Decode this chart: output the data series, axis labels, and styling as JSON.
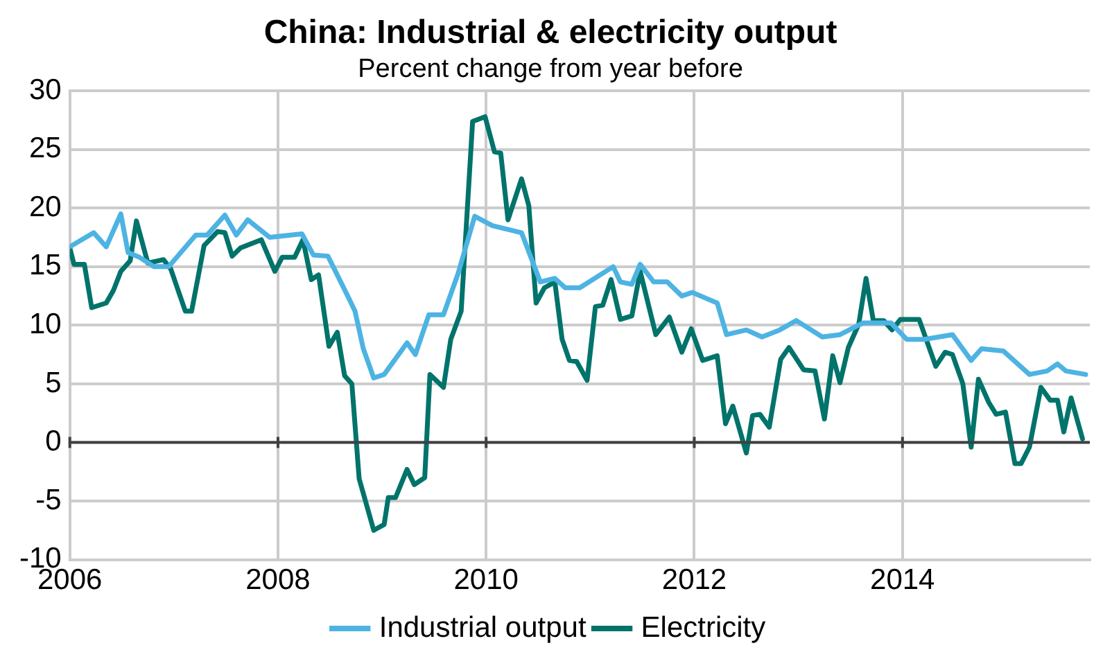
{
  "chart_data": {
    "type": "line",
    "title": "China: Industrial & electricity output",
    "subtitle": "Percent change from year before",
    "series": [
      {
        "name": "Industrial output",
        "color": "#4db3e3",
        "x": [
          2006.0,
          2006.23,
          2006.35,
          2006.49,
          2006.56,
          2006.67,
          2006.81,
          2006.95,
          2007.21,
          2007.32,
          2007.49,
          2007.6,
          2007.71,
          2007.92,
          2008.23,
          2008.34,
          2008.48,
          2008.67,
          2008.74,
          2008.82,
          2008.92,
          2009.02,
          2009.24,
          2009.32,
          2009.45,
          2009.59,
          2009.73,
          2009.89,
          2010.06,
          2010.34,
          2010.52,
          2010.66,
          2010.76,
          2010.9,
          2011.22,
          2011.29,
          2011.4,
          2011.48,
          2011.61,
          2011.74,
          2011.88,
          2011.98,
          2012.22,
          2012.31,
          2012.5,
          2012.65,
          2012.82,
          2012.98,
          2013.23,
          2013.4,
          2013.62,
          2013.89,
          2014.04,
          2014.21,
          2014.48,
          2014.66,
          2014.76,
          2014.97,
          2015.07,
          2015.22,
          2015.39,
          2015.49,
          2015.57,
          2015.76
        ],
        "values": [
          16.7,
          17.9,
          16.7,
          19.5,
          16.2,
          15.8,
          15,
          15,
          17.7,
          17.7,
          19.4,
          17.7,
          19,
          17.5,
          17.8,
          16,
          15.9,
          12.5,
          11.2,
          8,
          5.5,
          5.8,
          8.5,
          7.5,
          10.9,
          10.9,
          14.4,
          19.3,
          18.5,
          17.9,
          13.7,
          14,
          13.2,
          13.2,
          15,
          13.7,
          13.5,
          15.2,
          13.7,
          13.7,
          12.5,
          12.8,
          11.9,
          9.2,
          9.6,
          9,
          9.6,
          10.4,
          9,
          9.2,
          10.2,
          10.2,
          8.8,
          8.8,
          9.2,
          7,
          8,
          7.8,
          7,
          5.8,
          6.1,
          6.7,
          6.1,
          5.8
        ]
      },
      {
        "name": "Electricity",
        "color": "#00736b",
        "x": [
          2006.0,
          2006.04,
          2006.14,
          2006.21,
          2006.35,
          2006.42,
          2006.49,
          2006.58,
          2006.64,
          2006.75,
          2006.9,
          2006.97,
          2007.11,
          2007.17,
          2007.29,
          2007.42,
          2007.49,
          2007.56,
          2007.64,
          2007.84,
          2007.97,
          2008.04,
          2008.16,
          2008.24,
          2008.32,
          2008.39,
          2008.49,
          2008.57,
          2008.64,
          2008.71,
          2008.78,
          2008.92,
          2009.02,
          2009.06,
          2009.13,
          2009.24,
          2009.31,
          2009.41,
          2009.46,
          2009.59,
          2009.66,
          2009.76,
          2009.87,
          2009.99,
          2010.08,
          2010.14,
          2010.21,
          2010.34,
          2010.41,
          2010.48,
          2010.56,
          2010.66,
          2010.73,
          2010.8,
          2010.87,
          2010.97,
          2011.05,
          2011.12,
          2011.2,
          2011.29,
          2011.4,
          2011.48,
          2011.63,
          2011.76,
          2011.88,
          2011.97,
          2012.08,
          2012.22,
          2012.3,
          2012.37,
          2012.5,
          2012.56,
          2012.63,
          2012.72,
          2012.83,
          2012.91,
          2013.05,
          2013.16,
          2013.25,
          2013.33,
          2013.4,
          2013.48,
          2013.58,
          2013.65,
          2013.72,
          2013.82,
          2013.9,
          2013.98,
          2014.16,
          2014.32,
          2014.41,
          2014.48,
          2014.58,
          2014.66,
          2014.73,
          2014.83,
          2014.9,
          2014.99,
          2015.08,
          2015.14,
          2015.22,
          2015.33,
          2015.42,
          2015.49,
          2015.55,
          2015.62,
          2015.73
        ],
        "values": [
          16.6,
          15.2,
          15.2,
          11.5,
          11.9,
          13,
          14.6,
          15.5,
          18.9,
          15.3,
          15.6,
          14.8,
          11.2,
          11.2,
          16.8,
          18,
          17.9,
          15.9,
          16.6,
          17.3,
          14.6,
          15.8,
          15.8,
          17.3,
          13.9,
          14.3,
          8.2,
          9.4,
          5.7,
          5,
          -3.1,
          -7.5,
          -7,
          -4.7,
          -4.7,
          -2.3,
          -3.6,
          -3,
          5.8,
          4.7,
          8.8,
          11.2,
          27.4,
          27.8,
          24.8,
          24.7,
          19,
          22.5,
          20.2,
          11.9,
          13.2,
          13.7,
          8.8,
          7,
          6.9,
          5.3,
          11.6,
          11.7,
          13.9,
          10.5,
          10.8,
          14.6,
          9.2,
          10.7,
          7.7,
          9.7,
          7,
          7.4,
          1.6,
          3.1,
          -0.9,
          2.3,
          2.4,
          1.3,
          7.1,
          8.1,
          6.2,
          6.1,
          2,
          7.4,
          5.1,
          8.1,
          10.1,
          14,
          10.4,
          10.4,
          9.6,
          10.5,
          10.5,
          6.5,
          7.7,
          7.5,
          5,
          -0.4,
          5.4,
          3.4,
          2.4,
          2.6,
          -1.8,
          -1.8,
          -0.4,
          4.7,
          3.6,
          3.6,
          0.9,
          3.8,
          0.3
        ]
      }
    ],
    "xlim": [
      2006,
      2015.8
    ],
    "xticks": [
      2006,
      2008,
      2010,
      2012,
      2014
    ],
    "ylim": [
      -10,
      30
    ],
    "yticks": [
      -10,
      -5,
      0,
      5,
      10,
      15,
      20,
      25,
      30
    ],
    "ref_lines": [
      {
        "axis": "y",
        "value": 0,
        "color": "#404040"
      }
    ],
    "grid": true,
    "legend": "bottom",
    "marker": "none",
    "line_style": "solid"
  }
}
